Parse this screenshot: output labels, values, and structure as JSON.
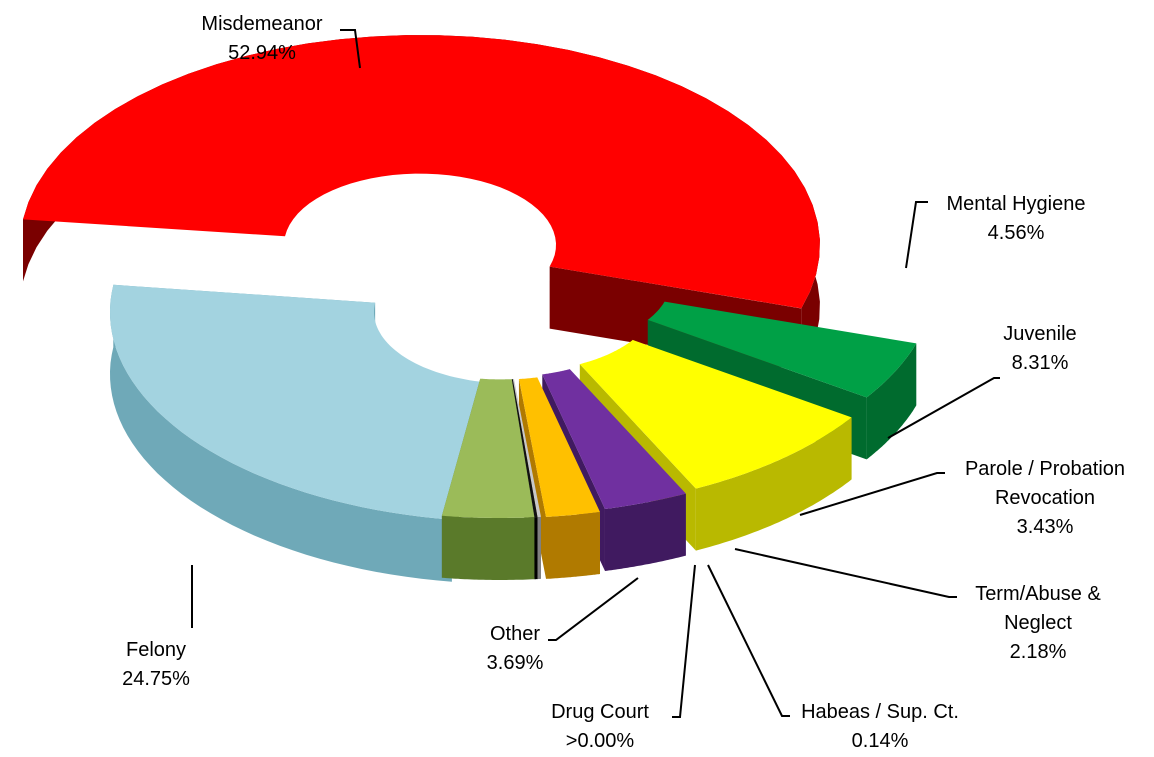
{
  "chart_data": {
    "type": "pie",
    "style": "3d-exploded",
    "title": "",
    "slices": [
      {
        "name": "Misdemeanor",
        "value": 52.94,
        "label": "52.94%",
        "color": "#ff0000",
        "side_color": "#7a0000"
      },
      {
        "name": "Mental Hygiene",
        "value": 4.56,
        "label": "4.56%",
        "color": "#00a046",
        "side_color": "#006b2e"
      },
      {
        "name": "Juvenile",
        "value": 8.31,
        "label": "8.31%",
        "color": "#ffff00",
        "side_color": "#b9b900"
      },
      {
        "name": "Parole / Probation Revocation",
        "label_lines": [
          "Parole / Probation",
          "Revocation"
        ],
        "value": 3.43,
        "label": "3.43%",
        "color": "#7030a0",
        "side_color": "#401a60"
      },
      {
        "name": "Term/Abuse & Neglect",
        "label_lines": [
          "Term/Abuse &",
          "Neglect"
        ],
        "value": 2.18,
        "label": "2.18%",
        "color": "#ffc000",
        "side_color": "#b07a00"
      },
      {
        "name": "Habeas / Sup. Ct.",
        "value": 0.14,
        "label": "0.14%",
        "color": "#c8c8c8",
        "side_color": "#808080"
      },
      {
        "name": "Drug Court",
        "value": 0.0,
        "label": ">0.00%",
        "color": "#111111",
        "side_color": "#000000"
      },
      {
        "name": "Other",
        "value": 3.69,
        "label": "3.69%",
        "color": "#9bbb59",
        "side_color": "#5a7a2a"
      },
      {
        "name": "Felony",
        "value": 24.75,
        "label": "24.75%",
        "color": "#a3d3e0",
        "side_color": "#6fa9b8"
      }
    ]
  }
}
